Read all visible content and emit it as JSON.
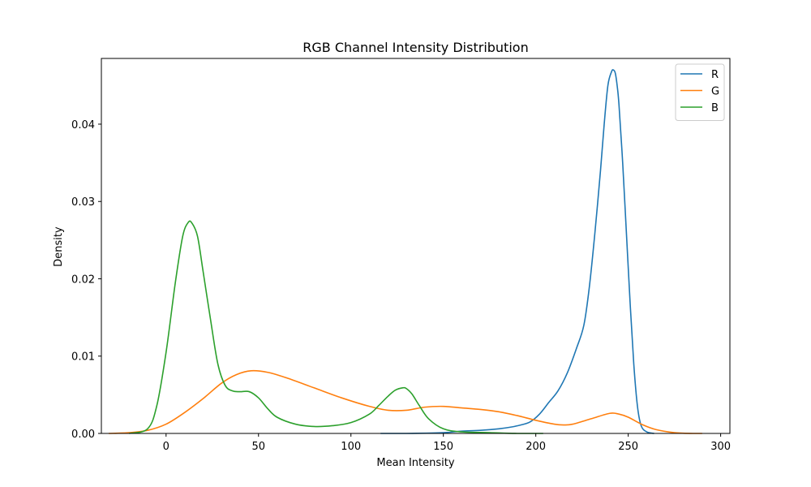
{
  "chart_data": {
    "type": "line",
    "title": "RGB Channel Intensity Distribution",
    "xlabel": "Mean Intensity",
    "ylabel": "Density",
    "xlim": [
      -35,
      305
    ],
    "ylim": [
      0,
      0.0485
    ],
    "x_ticks": [
      0,
      50,
      100,
      150,
      200,
      250,
      300
    ],
    "y_ticks": [
      0.0,
      0.01,
      0.02,
      0.03,
      0.04
    ],
    "y_tick_labels": [
      "0.00",
      "0.01",
      "0.02",
      "0.03",
      "0.04"
    ],
    "grid": false,
    "legend_position": "top-right",
    "series": [
      {
        "name": "R",
        "color": "#1f77b4",
        "x": [
          116,
          130,
          150,
          160,
          170,
          180,
          186,
          192,
          197,
          202,
          207,
          212,
          217,
          222,
          226,
          229,
          232,
          235,
          237,
          239,
          241,
          242,
          243,
          244,
          245,
          247,
          249,
          251,
          253,
          255,
          257,
          260,
          264
        ],
        "y": [
          0.0,
          0.0,
          0.0001,
          0.0003,
          0.0004,
          0.0006,
          0.0008,
          0.0011,
          0.0015,
          0.0025,
          0.004,
          0.0055,
          0.0078,
          0.011,
          0.014,
          0.019,
          0.026,
          0.034,
          0.04,
          0.045,
          0.0468,
          0.047,
          0.0466,
          0.045,
          0.0425,
          0.035,
          0.026,
          0.017,
          0.009,
          0.0035,
          0.001,
          0.0002,
          0.0
        ]
      },
      {
        "name": "G",
        "color": "#ff7f0e",
        "x": [
          -31,
          -20,
          -10,
          0,
          10,
          20,
          30,
          38,
          46,
          55,
          65,
          80,
          95,
          110,
          120,
          130,
          140,
          150,
          160,
          170,
          180,
          190,
          200,
          210,
          215,
          220,
          230,
          240,
          245,
          250,
          258,
          265,
          275,
          285,
          290
        ],
        "y": [
          0.0,
          0.0001,
          0.0004,
          0.0012,
          0.0027,
          0.0045,
          0.0065,
          0.0076,
          0.0081,
          0.0079,
          0.0072,
          0.0059,
          0.0046,
          0.0035,
          0.003,
          0.003,
          0.0034,
          0.0035,
          0.0033,
          0.0031,
          0.0028,
          0.0023,
          0.0017,
          0.0012,
          0.0011,
          0.0012,
          0.0019,
          0.0026,
          0.0025,
          0.0021,
          0.0011,
          0.0005,
          0.0001,
          0.0,
          0.0
        ]
      },
      {
        "name": "B",
        "color": "#2ca02c",
        "x": [
          -20,
          -10,
          -5,
          0,
          5,
          9,
          12,
          14,
          17,
          20,
          24,
          28,
          32,
          36,
          40,
          45,
          50,
          55,
          60,
          70,
          80,
          90,
          100,
          110,
          115,
          120,
          124,
          128,
          130,
          133,
          137,
          142,
          150,
          160,
          175,
          190,
          204
        ],
        "y": [
          0.0,
          0.0006,
          0.0036,
          0.0105,
          0.0195,
          0.0255,
          0.0273,
          0.0272,
          0.0255,
          0.021,
          0.0148,
          0.009,
          0.0062,
          0.0055,
          0.0054,
          0.0054,
          0.0046,
          0.0032,
          0.0021,
          0.0012,
          0.0009,
          0.001,
          0.0014,
          0.0025,
          0.0036,
          0.0048,
          0.0056,
          0.0059,
          0.0058,
          0.0051,
          0.0036,
          0.0019,
          0.0006,
          0.0002,
          0.0001,
          0.0,
          0.0
        ]
      }
    ]
  }
}
